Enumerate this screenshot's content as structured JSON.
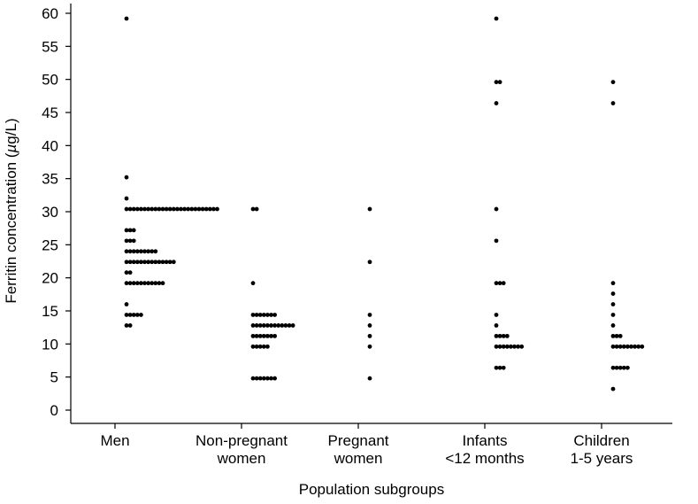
{
  "chart_data": {
    "type": "scatter",
    "title": "",
    "xlabel": "Population subgroups",
    "ylabel_prefix": "Ferritin concentration (",
    "ylabel_mu": "µ",
    "ylabel_suffix": "g/L)",
    "ylim": [
      0,
      60
    ],
    "yticks": [
      0,
      5,
      10,
      15,
      20,
      25,
      30,
      35,
      40,
      45,
      50,
      55,
      60
    ],
    "categories": [
      {
        "key": "men",
        "lines": [
          "Men"
        ]
      },
      {
        "key": "non-pregnant",
        "lines": [
          "Non-pregnant",
          "women"
        ]
      },
      {
        "key": "pregnant",
        "lines": [
          "Pregnant",
          "women"
        ]
      },
      {
        "key": "infants",
        "lines": [
          "Infants",
          "<12 months"
        ]
      },
      {
        "key": "children",
        "lines": [
          "Children",
          "1-5 years"
        ]
      }
    ],
    "series": [
      {
        "name": "Men",
        "groups": [
          {
            "value": 59.2,
            "count": 1
          },
          {
            "value": 35.2,
            "count": 1
          },
          {
            "value": 32.0,
            "count": 1
          },
          {
            "value": 30.4,
            "count": 26
          },
          {
            "value": 27.2,
            "count": 3
          },
          {
            "value": 25.6,
            "count": 3
          },
          {
            "value": 24.0,
            "count": 9
          },
          {
            "value": 22.4,
            "count": 14
          },
          {
            "value": 20.8,
            "count": 2
          },
          {
            "value": 19.2,
            "count": 11
          },
          {
            "value": 16.0,
            "count": 1
          },
          {
            "value": 14.4,
            "count": 5
          },
          {
            "value": 12.8,
            "count": 2
          }
        ]
      },
      {
        "name": "Non-pregnant women",
        "groups": [
          {
            "value": 30.4,
            "count": 2
          },
          {
            "value": 19.2,
            "count": 1
          },
          {
            "value": 14.4,
            "count": 7
          },
          {
            "value": 12.8,
            "count": 12
          },
          {
            "value": 11.2,
            "count": 7
          },
          {
            "value": 9.6,
            "count": 5
          },
          {
            "value": 4.8,
            "count": 7
          }
        ]
      },
      {
        "name": "Pregnant women",
        "groups": [
          {
            "value": 30.4,
            "count": 1
          },
          {
            "value": 22.4,
            "count": 1
          },
          {
            "value": 14.4,
            "count": 1
          },
          {
            "value": 12.8,
            "count": 1
          },
          {
            "value": 11.2,
            "count": 1
          },
          {
            "value": 9.6,
            "count": 1
          },
          {
            "value": 4.8,
            "count": 1
          }
        ]
      },
      {
        "name": "Infants <12 months",
        "groups": [
          {
            "value": 59.2,
            "count": 1
          },
          {
            "value": 49.6,
            "count": 2
          },
          {
            "value": 46.4,
            "count": 1
          },
          {
            "value": 30.4,
            "count": 1
          },
          {
            "value": 25.6,
            "count": 1
          },
          {
            "value": 19.2,
            "count": 3
          },
          {
            "value": 14.4,
            "count": 1
          },
          {
            "value": 12.8,
            "count": 1
          },
          {
            "value": 11.2,
            "count": 4
          },
          {
            "value": 9.6,
            "count": 8
          },
          {
            "value": 6.4,
            "count": 3
          }
        ]
      },
      {
        "name": "Children 1-5 years",
        "groups": [
          {
            "value": 49.6,
            "count": 1
          },
          {
            "value": 46.4,
            "count": 1
          },
          {
            "value": 19.2,
            "count": 1
          },
          {
            "value": 17.6,
            "count": 1
          },
          {
            "value": 16.0,
            "count": 1
          },
          {
            "value": 14.4,
            "count": 1
          },
          {
            "value": 12.8,
            "count": 1
          },
          {
            "value": 11.2,
            "count": 3
          },
          {
            "value": 9.6,
            "count": 9
          },
          {
            "value": 6.4,
            "count": 5
          },
          {
            "value": 3.2,
            "count": 1
          }
        ]
      }
    ],
    "grid": false,
    "legend": "none"
  }
}
